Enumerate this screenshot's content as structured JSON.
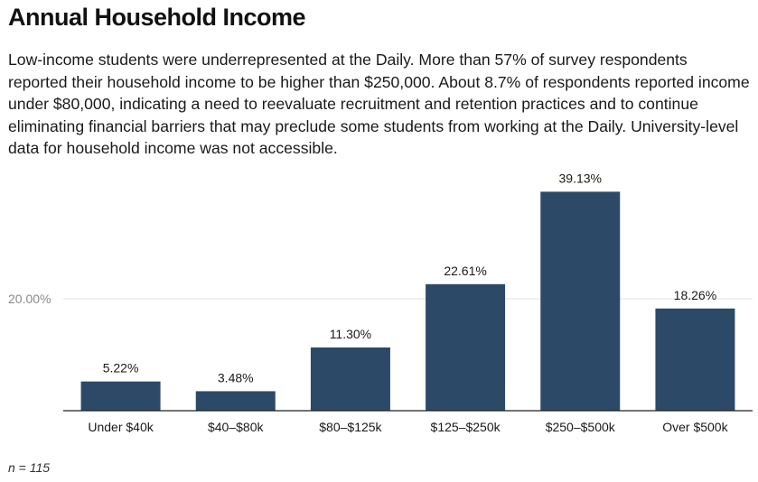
{
  "title": "Annual Household Income",
  "subtitle": "Low-income students were underrepresented at the Daily. More than 57% of survey respondents reported their household income to be higher than $250,000. About 8.7% of respondents reported income under $80,000, indicating a need to reevaluate recruitment and retention practices and to continue eliminating financial barriers that may preclude some students from working at the Daily. University-level data for household income was not accessible.",
  "footnote": "n = 115",
  "colors": {
    "bar": "#2c4a68",
    "grid": "#e2e2e2",
    "axis": "#222222"
  },
  "chart_data": {
    "type": "bar",
    "categories": [
      "Under $40k",
      "$40–$80k",
      "$80–$125k",
      "$125–$250k",
      "$250–$500k",
      "Over $500k"
    ],
    "values": [
      5.22,
      3.48,
      11.3,
      22.61,
      39.13,
      18.26
    ],
    "value_labels": [
      "5.22%",
      "3.48%",
      "11.30%",
      "22.61%",
      "39.13%",
      "18.26%"
    ],
    "yticks": [
      20
    ],
    "ytick_labels": [
      "20.00%"
    ],
    "ylim": [
      0,
      40
    ],
    "grid": true,
    "legend": "none"
  }
}
